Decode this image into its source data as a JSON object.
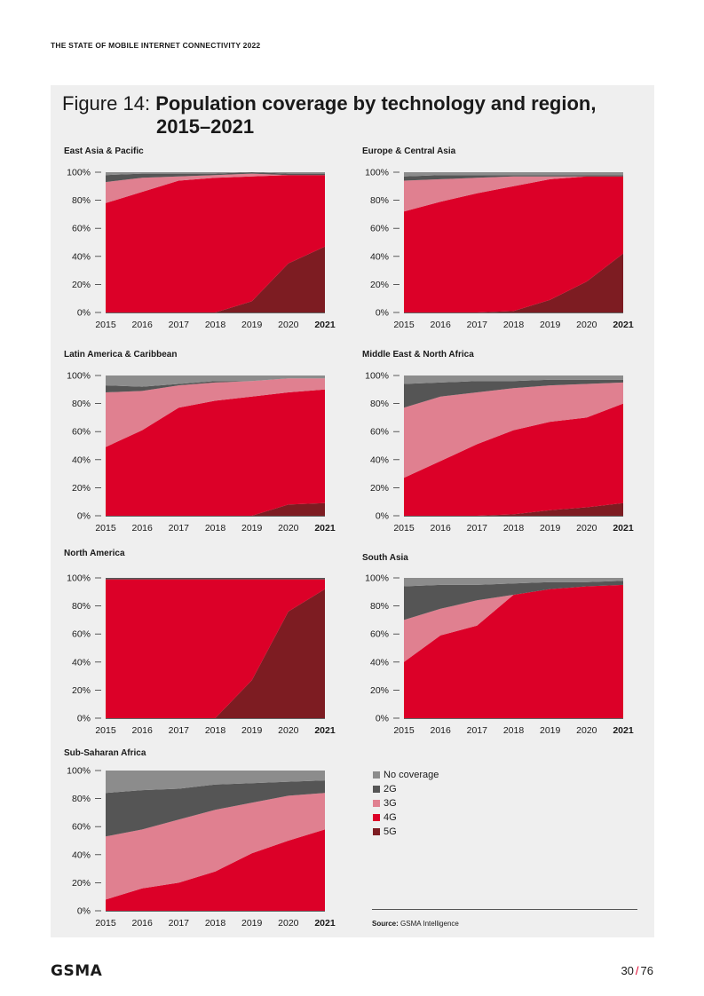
{
  "header": {
    "report_title": "THE STATE OF MOBILE INTERNET CONNECTIVITY 2022"
  },
  "figure": {
    "label": "Figure 14:",
    "title_line1": "Population coverage by technology and region,",
    "title_line2": "2015–2021"
  },
  "colors": {
    "no_coverage": "#8c8c8c",
    "g2": "#555555",
    "g3": "#e08090",
    "g4": "#dc0028",
    "g5": "#7d1c22",
    "panel": "#efefef"
  },
  "legend": [
    {
      "label": "No coverage",
      "key": "no_coverage"
    },
    {
      "label": "2G",
      "key": "g2"
    },
    {
      "label": "3G",
      "key": "g3"
    },
    {
      "label": "4G",
      "key": "g4"
    },
    {
      "label": "5G",
      "key": "g5"
    }
  ],
  "chart_data": [
    {
      "type": "area",
      "title": "East Asia & Pacific",
      "x": [
        "2015",
        "2016",
        "2017",
        "2018",
        "2019",
        "2020",
        "2021"
      ],
      "y_ticks": [
        "0%",
        "20%",
        "40%",
        "60%",
        "80%",
        "100%"
      ],
      "ylim": [
        0,
        100
      ],
      "series": [
        {
          "name": "5G",
          "values": [
            0,
            0,
            0,
            0,
            8,
            35,
            47
          ]
        },
        {
          "name": "4G",
          "values": [
            78,
            86,
            94,
            96,
            89,
            63,
            51
          ]
        },
        {
          "name": "3G",
          "values": [
            15,
            10,
            3,
            2,
            2,
            0,
            0
          ]
        },
        {
          "name": "2G",
          "values": [
            5,
            3,
            2,
            1,
            1,
            1,
            1
          ]
        },
        {
          "name": "No coverage",
          "values": [
            2,
            1,
            1,
            1,
            0,
            1,
            1
          ]
        }
      ]
    },
    {
      "type": "area",
      "title": "Europe & Central Asia",
      "x": [
        "2015",
        "2016",
        "2017",
        "2018",
        "2019",
        "2020",
        "2021"
      ],
      "y_ticks": [
        "0%",
        "20%",
        "40%",
        "60%",
        "80%",
        "100%"
      ],
      "ylim": [
        0,
        100
      ],
      "series": [
        {
          "name": "5G",
          "values": [
            0,
            0,
            0,
            1,
            9,
            22,
            42
          ]
        },
        {
          "name": "4G",
          "values": [
            72,
            79,
            85,
            89,
            86,
            75,
            55
          ]
        },
        {
          "name": "3G",
          "values": [
            22,
            16,
            11,
            7,
            2,
            0,
            0
          ]
        },
        {
          "name": "2G",
          "values": [
            3,
            3,
            2,
            1,
            1,
            1,
            1
          ]
        },
        {
          "name": "No coverage",
          "values": [
            3,
            2,
            2,
            2,
            2,
            2,
            2
          ]
        }
      ]
    },
    {
      "type": "area",
      "title": "Latin America & Caribbean",
      "x": [
        "2015",
        "2016",
        "2017",
        "2018",
        "2019",
        "2020",
        "2021"
      ],
      "y_ticks": [
        "0%",
        "20%",
        "40%",
        "60%",
        "80%",
        "100%"
      ],
      "ylim": [
        0,
        100
      ],
      "series": [
        {
          "name": "5G",
          "values": [
            0,
            0,
            0,
            0,
            0,
            8,
            9
          ]
        },
        {
          "name": "4G",
          "values": [
            49,
            61,
            77,
            82,
            85,
            80,
            81
          ]
        },
        {
          "name": "3G",
          "values": [
            39,
            28,
            16,
            13,
            11,
            10,
            8
          ]
        },
        {
          "name": "2G",
          "values": [
            5,
            3,
            1,
            1,
            0,
            0,
            0
          ]
        },
        {
          "name": "No coverage",
          "values": [
            7,
            8,
            6,
            4,
            4,
            2,
            2
          ]
        }
      ]
    },
    {
      "type": "area",
      "title": "Middle East & North Africa",
      "x": [
        "2015",
        "2016",
        "2017",
        "2018",
        "2019",
        "2020",
        "2021"
      ],
      "y_ticks": [
        "0%",
        "20%",
        "40%",
        "60%",
        "80%",
        "100%"
      ],
      "ylim": [
        0,
        100
      ],
      "series": [
        {
          "name": "5G",
          "values": [
            0,
            0,
            0,
            1,
            4,
            6,
            9
          ]
        },
        {
          "name": "4G",
          "values": [
            27,
            39,
            51,
            60,
            63,
            64,
            71
          ]
        },
        {
          "name": "3G",
          "values": [
            50,
            46,
            37,
            30,
            26,
            24,
            15
          ]
        },
        {
          "name": "2G",
          "values": [
            17,
            10,
            8,
            5,
            4,
            3,
            2
          ]
        },
        {
          "name": "No coverage",
          "values": [
            6,
            5,
            4,
            4,
            3,
            3,
            3
          ]
        }
      ]
    },
    {
      "type": "area",
      "title": "North America",
      "x": [
        "2015",
        "2016",
        "2017",
        "2018",
        "2019",
        "2020",
        "2021"
      ],
      "y_ticks": [
        "0%",
        "20%",
        "40%",
        "60%",
        "80%",
        "100%"
      ],
      "ylim": [
        0,
        100
      ],
      "series": [
        {
          "name": "5G",
          "values": [
            0,
            0,
            0,
            0,
            27,
            76,
            92
          ]
        },
        {
          "name": "4G",
          "values": [
            99,
            99,
            99,
            99,
            72,
            23,
            7
          ]
        },
        {
          "name": "3G",
          "values": [
            0,
            0,
            0,
            0,
            0,
            0,
            0
          ]
        },
        {
          "name": "2G",
          "values": [
            1,
            1,
            1,
            1,
            1,
            1,
            1
          ]
        },
        {
          "name": "No coverage",
          "values": [
            0,
            0,
            0,
            0,
            0,
            0,
            0
          ]
        }
      ]
    },
    {
      "type": "area",
      "title": "South Asia",
      "x": [
        "2015",
        "2016",
        "2017",
        "2018",
        "2019",
        "2020",
        "2021"
      ],
      "y_ticks": [
        "0%",
        "20%",
        "40%",
        "60%",
        "80%",
        "100%"
      ],
      "ylim": [
        0,
        100
      ],
      "series": [
        {
          "name": "5G",
          "values": [
            0,
            0,
            0,
            0,
            0,
            0,
            0
          ]
        },
        {
          "name": "4G",
          "values": [
            40,
            59,
            66,
            88,
            92,
            94,
            95
          ]
        },
        {
          "name": "3G",
          "values": [
            30,
            19,
            18,
            0,
            0,
            0,
            0
          ]
        },
        {
          "name": "2G",
          "values": [
            24,
            17,
            11,
            8,
            5,
            3,
            3
          ]
        },
        {
          "name": "No coverage",
          "values": [
            6,
            5,
            5,
            4,
            3,
            3,
            2
          ]
        }
      ]
    },
    {
      "type": "area",
      "title": "Sub-Saharan Africa",
      "x": [
        "2015",
        "2016",
        "2017",
        "2018",
        "2019",
        "2020",
        "2021"
      ],
      "y_ticks": [
        "0%",
        "20%",
        "40%",
        "60%",
        "80%",
        "100%"
      ],
      "ylim": [
        0,
        100
      ],
      "series": [
        {
          "name": "5G",
          "values": [
            0,
            0,
            0,
            0,
            0,
            0,
            0
          ]
        },
        {
          "name": "4G",
          "values": [
            8,
            16,
            20,
            28,
            41,
            50,
            58
          ]
        },
        {
          "name": "3G",
          "values": [
            45,
            42,
            45,
            44,
            36,
            32,
            26
          ]
        },
        {
          "name": "2G",
          "values": [
            31,
            28,
            22,
            18,
            14,
            10,
            9
          ]
        },
        {
          "name": "No coverage",
          "values": [
            16,
            14,
            13,
            10,
            9,
            8,
            7
          ]
        }
      ]
    }
  ],
  "source": {
    "label": "Source:",
    "text": "GSMA Intelligence"
  },
  "footer": {
    "logo": "GSMA",
    "page_current": "30",
    "page_sep": "/",
    "page_total": "76"
  }
}
